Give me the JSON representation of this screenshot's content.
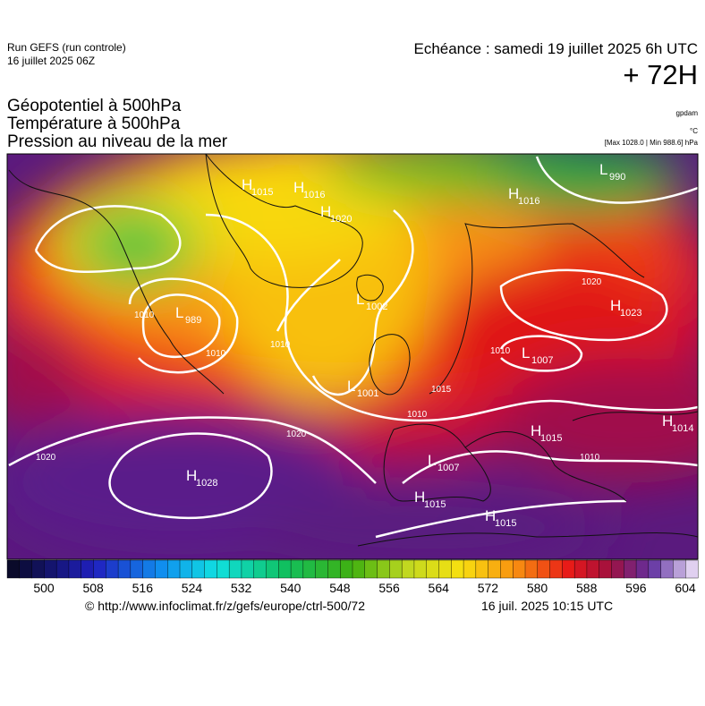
{
  "header": {
    "run": "Run GEFS (run controle)",
    "run_date": "16 juillet 2025 06Z",
    "valid": "Echéance : samedi 19 juillet 2025 6h UTC",
    "lead": "+ 72H"
  },
  "fields": [
    "Géopotentiel à 500hPa",
    "Température à 500hPa",
    "Pression au niveau de la mer"
  ],
  "units": [
    "gpdam",
    "°C",
    "[Max 1028.0 | Min 988.6] hPa"
  ],
  "centers": [
    {
      "letter": "H",
      "value": 1015
    },
    {
      "letter": "H",
      "value": 1016
    },
    {
      "letter": "H",
      "value": 1020
    },
    {
      "letter": "H",
      "value": 1016
    },
    {
      "letter": "L",
      "value": 990
    },
    {
      "letter": "L",
      "value": 1002
    },
    {
      "letter": "L",
      "value": 989
    },
    {
      "letter": "H",
      "value": 1023
    },
    {
      "letter": "L",
      "value": 1007
    },
    {
      "letter": "L",
      "value": 1001
    },
    {
      "letter": "H",
      "value": 1015
    },
    {
      "letter": "L",
      "value": 1007
    },
    {
      "letter": "H",
      "value": 1028
    },
    {
      "letter": "H",
      "value": 1015
    },
    {
      "letter": "H",
      "value": 1015
    },
    {
      "letter": "H",
      "value": 1014
    }
  ],
  "isobar_labels": [
    1020,
    1010,
    1010,
    1010,
    1020,
    1020,
    1010,
    1015,
    1010,
    1010
  ],
  "colorbar": {
    "ticks": [
      500,
      508,
      516,
      524,
      532,
      540,
      548,
      556,
      564,
      572,
      580,
      588,
      596,
      604
    ]
  },
  "footer": {
    "url": "© http://www.infoclimat.fr/z/gefs/europe/ctrl-500/72",
    "date": "16 juil. 2025 10:15 UTC"
  }
}
